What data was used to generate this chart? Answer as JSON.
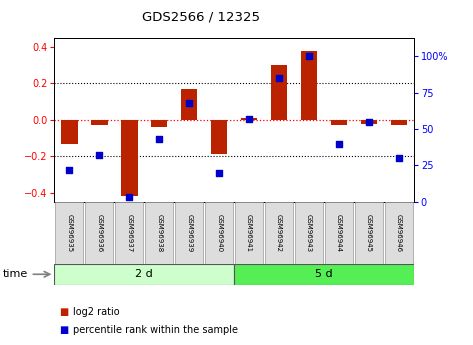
{
  "title": "GDS2566 / 12325",
  "samples": [
    "GSM96935",
    "GSM96936",
    "GSM96937",
    "GSM96938",
    "GSM96939",
    "GSM96940",
    "GSM96941",
    "GSM96942",
    "GSM96943",
    "GSM96944",
    "GSM96945",
    "GSM96946"
  ],
  "log2_ratio": [
    -0.13,
    -0.03,
    -0.42,
    -0.04,
    0.17,
    -0.19,
    0.01,
    0.3,
    0.38,
    -0.03,
    -0.02,
    -0.03
  ],
  "percentile_rank": [
    22,
    32,
    3,
    43,
    68,
    20,
    57,
    85,
    100,
    40,
    55,
    30
  ],
  "group1_label": "2 d",
  "group1_count": 6,
  "group2_label": "5 d",
  "group2_count": 6,
  "group1_color": "#ccffcc",
  "group2_color": "#55ee55",
  "bar_color": "#bb2200",
  "dot_color": "#0000cc",
  "ylim_left": [
    -0.45,
    0.45
  ],
  "ylim_right": [
    0,
    112.5
  ],
  "yticks_left": [
    -0.4,
    -0.2,
    0.0,
    0.2,
    0.4
  ],
  "yticks_right": [
    0,
    25,
    50,
    75,
    100
  ],
  "hline_dotted": [
    -0.2,
    0.2
  ],
  "hline_red": 0.0,
  "legend_label1": "log2 ratio",
  "legend_label2": "percentile rank within the sample",
  "time_label": "time",
  "bar_width": 0.55,
  "sample_box_color": "#dddddd",
  "sample_box_edge": "#999999"
}
